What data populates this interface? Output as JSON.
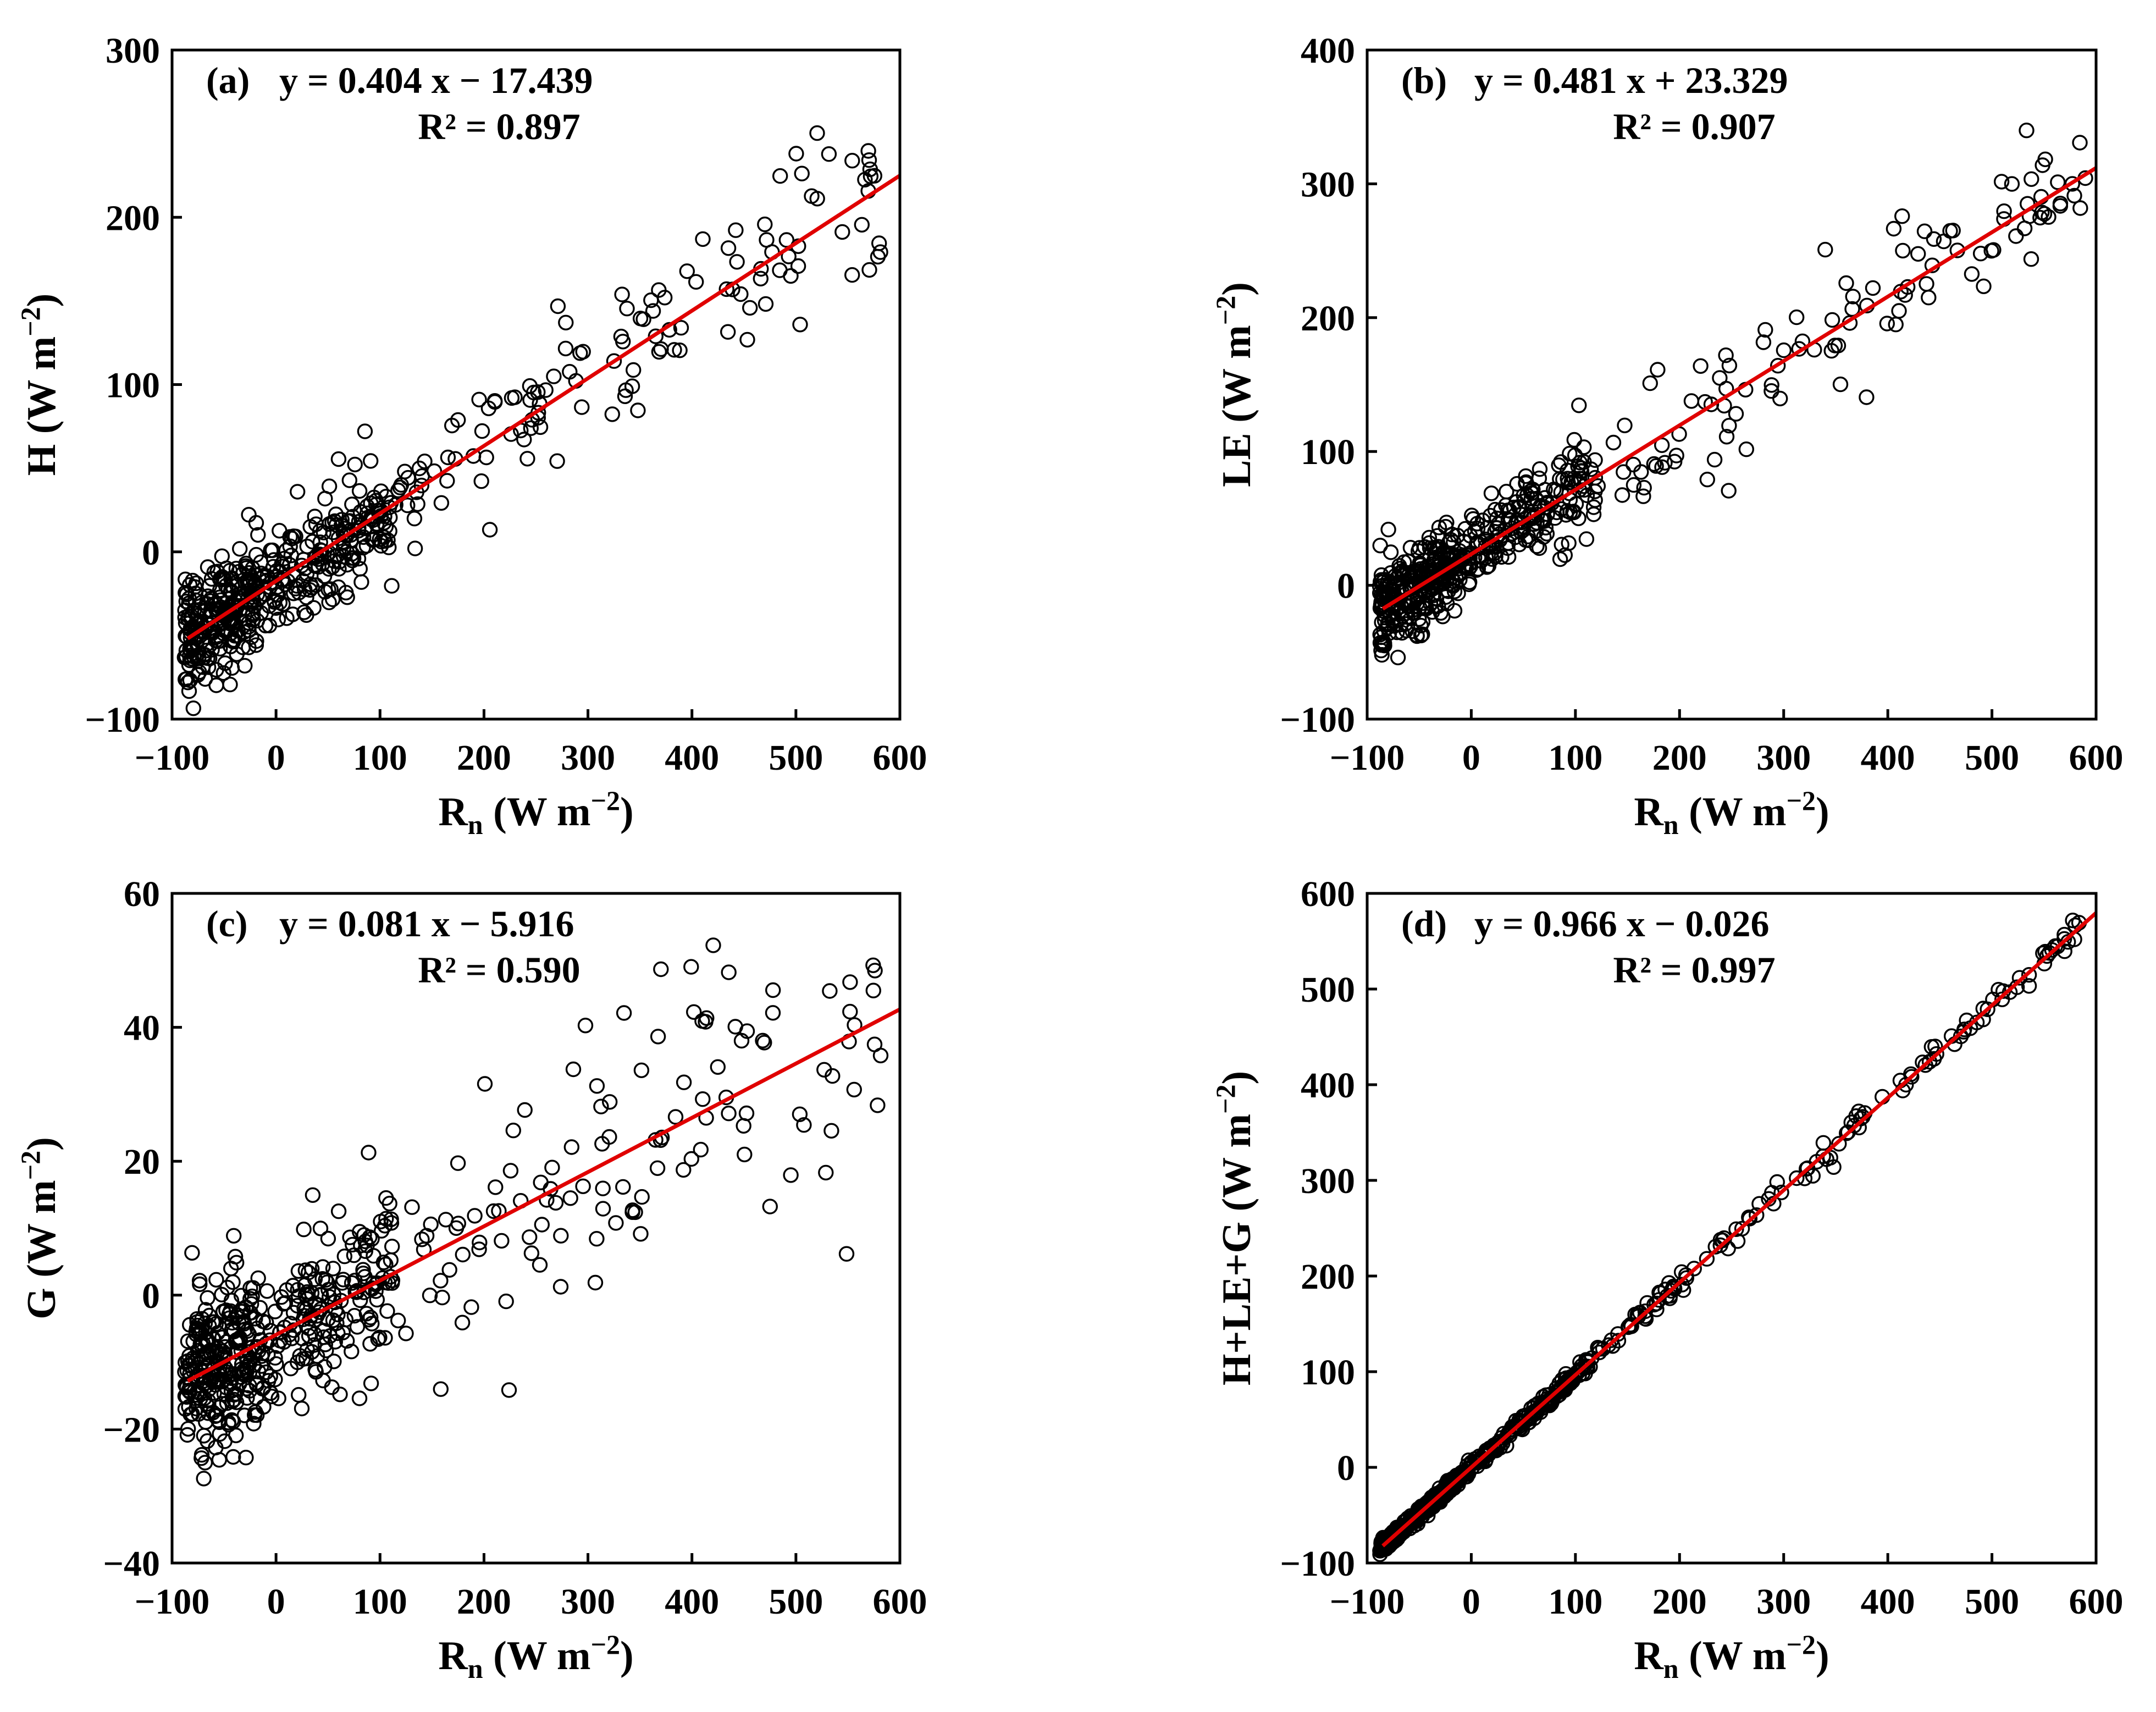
{
  "colors": {
    "points": "#000000",
    "fit_line": "#e00000",
    "axes": "#000000",
    "background": "#ffffff"
  },
  "chart_data": [
    {
      "id": "a",
      "type": "scatter",
      "panel_label": "(a)",
      "equation": "y = 0.404 x − 17.439",
      "r2": "R² = 0.897",
      "slope": 0.404,
      "intercept": -17.439,
      "xlim": [
        -100,
        600
      ],
      "ylim": [
        -100,
        300
      ],
      "xticks": [
        -100,
        0,
        100,
        200,
        300,
        400,
        500,
        600
      ],
      "yticks": [
        -100,
        0,
        100,
        200,
        300
      ],
      "xtick_labels": [
        "−100",
        "0",
        "100",
        "200",
        "300",
        "400",
        "500",
        "600"
      ],
      "ytick_labels": [
        "−100",
        "0",
        "100",
        "200",
        "300"
      ],
      "xlabel": {
        "base": "R",
        "sub": "n",
        "unit": " (W m",
        "sup": "−2",
        "close": ")"
      },
      "ylabel": {
        "base": "H",
        "unit": " (W m",
        "sup": "−2",
        "close": ")"
      },
      "fit_x_range": [
        -85,
        600
      ],
      "point_x_range": [
        -88,
        590
      ],
      "point_scatter_sd": 22,
      "n_points": 560,
      "seed": 11
    },
    {
      "id": "b",
      "type": "scatter",
      "panel_label": "(b)",
      "equation": "y = 0.481 x + 23.329",
      "r2": "R² = 0.907",
      "slope": 0.481,
      "intercept": 23.329,
      "xlim": [
        -100,
        600
      ],
      "ylim": [
        -100,
        400
      ],
      "xticks": [
        -100,
        0,
        100,
        200,
        300,
        400,
        500,
        600
      ],
      "yticks": [
        -100,
        0,
        100,
        200,
        300,
        400
      ],
      "xtick_labels": [
        "−100",
        "0",
        "100",
        "200",
        "300",
        "400",
        "500",
        "600"
      ],
      "ytick_labels": [
        "−100",
        "0",
        "100",
        "200",
        "300",
        "400"
      ],
      "xlabel": {
        "base": "R",
        "sub": "n",
        "unit": " (W m",
        "sup": "−2",
        "close": ")"
      },
      "ylabel": {
        "base": "LE",
        "unit": " (W m",
        "sup": "−2",
        "close": ")"
      },
      "fit_x_range": [
        -85,
        600
      ],
      "point_x_range": [
        -88,
        590
      ],
      "point_scatter_sd": 22,
      "n_points": 560,
      "seed": 23
    },
    {
      "id": "c",
      "type": "scatter",
      "panel_label": "(c)",
      "equation": "y = 0.081 x − 5.916",
      "r2": "R² = 0.590",
      "slope": 0.081,
      "intercept": -5.916,
      "xlim": [
        -100,
        600
      ],
      "ylim": [
        -40,
        60
      ],
      "xticks": [
        -100,
        0,
        100,
        200,
        300,
        400,
        500,
        600
      ],
      "yticks": [
        -40,
        -20,
        0,
        20,
        40,
        60
      ],
      "xtick_labels": [
        "−100",
        "0",
        "100",
        "200",
        "300",
        "400",
        "500",
        "600"
      ],
      "ytick_labels": [
        "−40",
        "−20",
        "0",
        "20",
        "40",
        "60"
      ],
      "xlabel": {
        "base": "R",
        "sub": "n",
        "unit": " (W m",
        "sup": "−2",
        "close": ")"
      },
      "ylabel": {
        "base": "G",
        "unit": " (W m",
        "sup": "−2",
        "close": ")"
      },
      "fit_x_range": [
        -85,
        600
      ],
      "point_x_range": [
        -88,
        590
      ],
      "point_scatter_sd": 8.5,
      "n_points": 560,
      "seed": 37
    },
    {
      "id": "d",
      "type": "scatter",
      "panel_label": "(d)",
      "equation": "y = 0.966 x − 0.026",
      "r2": "R² = 0.997",
      "slope": 0.966,
      "intercept": -0.026,
      "xlim": [
        -100,
        600
      ],
      "ylim": [
        -100,
        600
      ],
      "xticks": [
        -100,
        0,
        100,
        200,
        300,
        400,
        500,
        600
      ],
      "yticks": [
        -100,
        0,
        100,
        200,
        300,
        400,
        500,
        600
      ],
      "xtick_labels": [
        "−100",
        "0",
        "100",
        "200",
        "300",
        "400",
        "500",
        "600"
      ],
      "ytick_labels": [
        "−100",
        "0",
        "100",
        "200",
        "300",
        "400",
        "500",
        "600"
      ],
      "xlabel": {
        "base": "R",
        "sub": "n",
        "unit": " (W m",
        "sup": "−2",
        "close": ")"
      },
      "ylabel": {
        "base": "H+LE+G",
        "unit": " (W m",
        "sup": "−2",
        "close": ")"
      },
      "fit_x_range": [
        -85,
        600
      ],
      "point_x_range": [
        -88,
        590
      ],
      "point_scatter_sd": 5,
      "n_points": 560,
      "seed": 53
    }
  ]
}
